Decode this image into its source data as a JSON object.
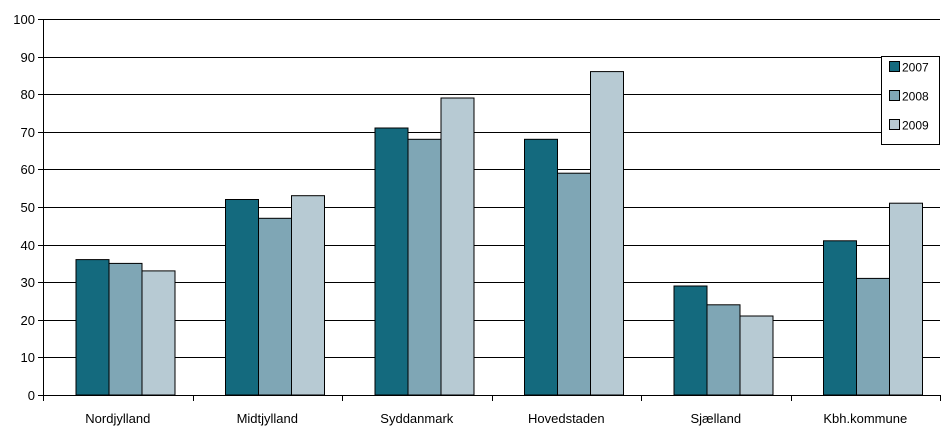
{
  "chart_data": {
    "type": "bar",
    "title": "",
    "xlabel": "",
    "ylabel": "",
    "categories": [
      "Nordjylland",
      "Midtjylland",
      "Syddanmark",
      "Hovedstaden",
      "Sjælland",
      "Kbh.kommune"
    ],
    "series": [
      {
        "name": "2007",
        "values": [
          36,
          52,
          71,
          68,
          29,
          41
        ],
        "color": "#146a7e"
      },
      {
        "name": "2008",
        "values": [
          35,
          47,
          68,
          59,
          24,
          31
        ],
        "color": "#7fa6b5"
      },
      {
        "name": "2009",
        "values": [
          33,
          53,
          79,
          86,
          21,
          51
        ],
        "color": "#b7cad3"
      }
    ],
    "ylim": [
      0,
      100
    ],
    "yticks": [
      0,
      10,
      20,
      30,
      40,
      50,
      60,
      70,
      80,
      90,
      100
    ],
    "grid": true,
    "legend_position": "right"
  }
}
